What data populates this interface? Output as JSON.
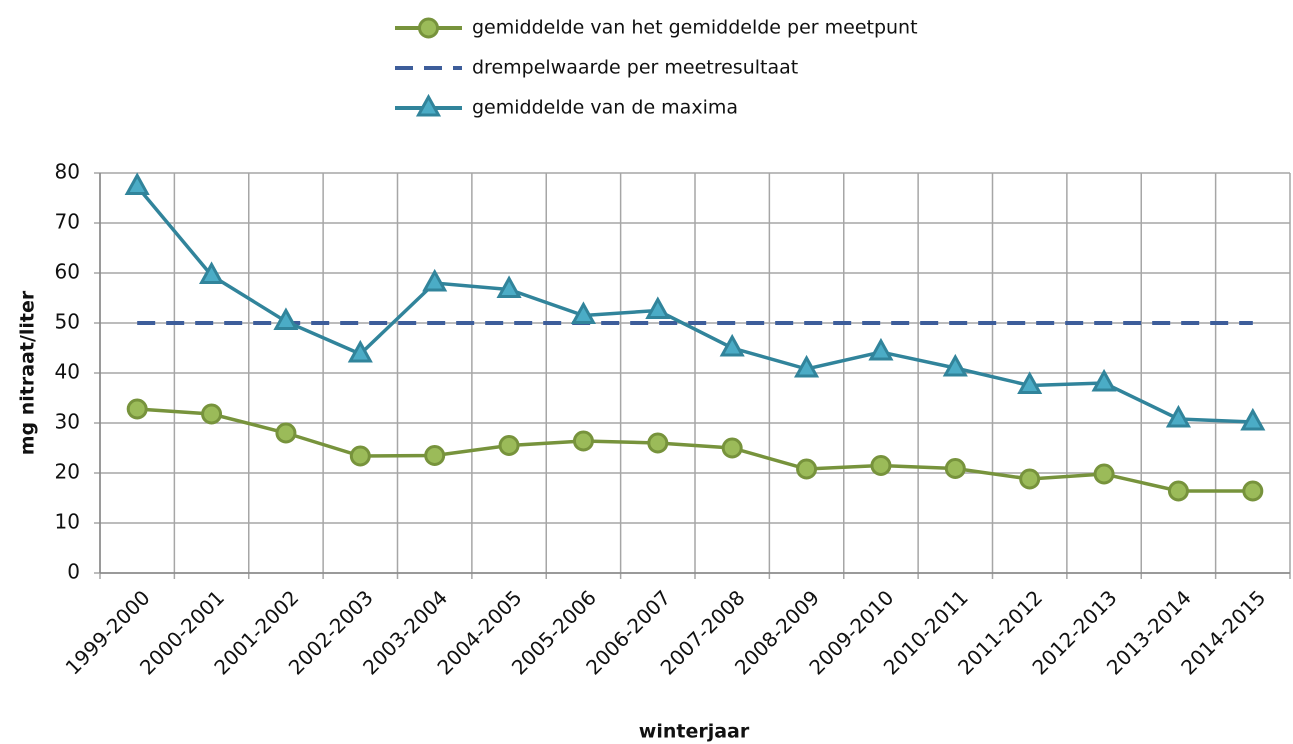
{
  "chart_data": {
    "type": "line",
    "x_label": "winterjaar",
    "y_label": "mg nitraat/liter",
    "categories": [
      "1999-2000",
      "2000-2001",
      "2001-2002",
      "2002-2003",
      "2003-2004",
      "2004-2005",
      "2005-2006",
      "2006-2007",
      "2007-2008",
      "2008-2009",
      "2009-2010",
      "2010-2011",
      "2011-2012",
      "2012-2013",
      "2013-2014",
      "2014-2015"
    ],
    "series": [
      {
        "name": "gemiddelde van het gemiddelde per meetpunt",
        "color": "#77933c",
        "marker": "circle",
        "marker_fill": "#9bbb59",
        "values": [
          32.8,
          31.8,
          28,
          23.4,
          23.5,
          25.5,
          26.4,
          26,
          25,
          20.8,
          21.5,
          20.9,
          18.8,
          19.8,
          16.4,
          16.4
        ]
      },
      {
        "name": "drempelwaarde per meetresultaat",
        "color": "#3d5d9a",
        "marker": "none",
        "dashed": true,
        "values": [
          50,
          50,
          50,
          50,
          50,
          50,
          50,
          50,
          50,
          50,
          50,
          50,
          50,
          50,
          50,
          50
        ]
      },
      {
        "name": "gemiddelde van de maxima",
        "color": "#31849b",
        "marker": "triangle",
        "marker_fill": "#4bacc6",
        "values": [
          77.3,
          59.5,
          50.3,
          43.8,
          58,
          56.7,
          51.5,
          52.5,
          45,
          40.8,
          44.2,
          41,
          37.5,
          38,
          30.8,
          30.2
        ]
      }
    ],
    "ylim": [
      0,
      80
    ],
    "yticks": [
      0,
      10,
      20,
      30,
      40,
      50,
      60,
      70,
      80
    ],
    "grid": true
  }
}
